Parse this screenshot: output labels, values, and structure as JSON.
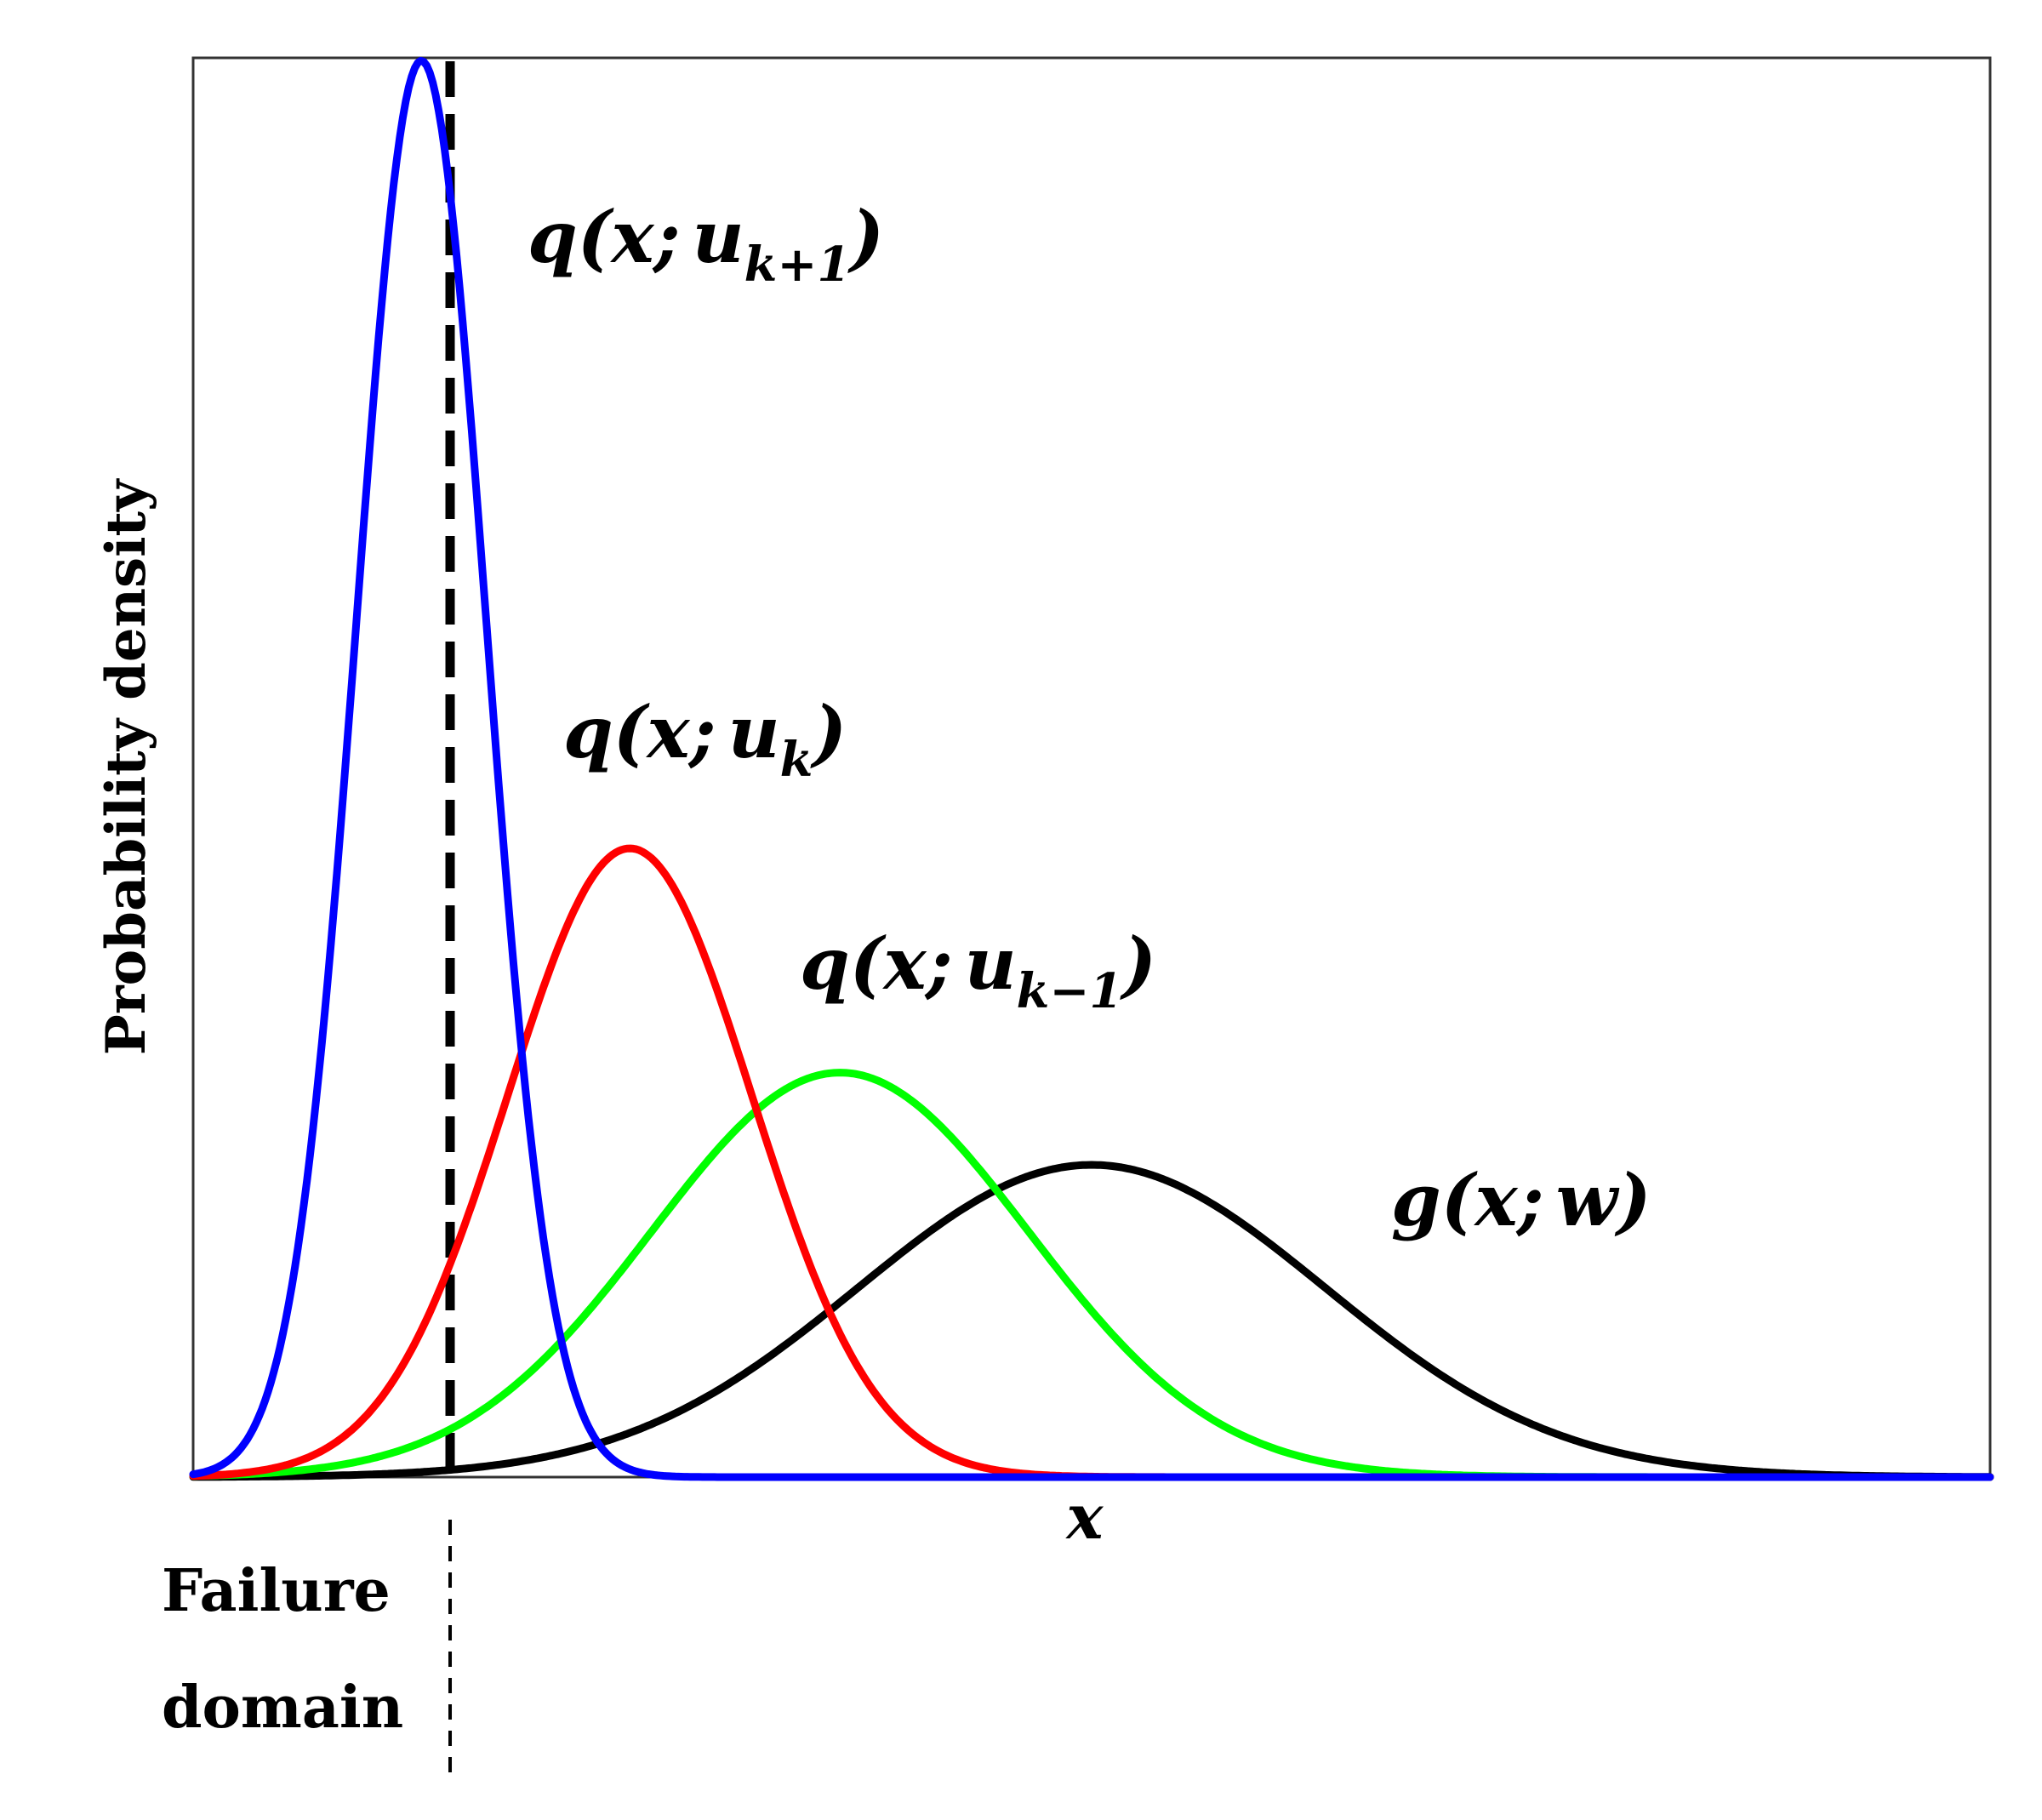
{
  "chart_data": {
    "type": "line",
    "title": "",
    "xlabel": "x",
    "ylabel": "Probability density",
    "xlim": [
      0,
      10
    ],
    "ylim": [
      0,
      1
    ],
    "grid": false,
    "ticks": false,
    "series": [
      {
        "label_main": "g(x;",
        "label_sub": "",
        "label_tail": "w)",
        "color": "#000000",
        "mean": 5.0,
        "sd": 1.3,
        "peak": 0.22
      },
      {
        "label_main": "q(x;",
        "label_sub": "k−1",
        "label_tail": "u",
        "color": "#00ff00",
        "mean": 3.6,
        "sd": 1.05,
        "peak": 0.285
      },
      {
        "label_main": "q(x;",
        "label_sub": "k",
        "label_tail": "u",
        "color": "#ff0000",
        "mean": 2.43,
        "sd": 0.68,
        "peak": 0.443
      },
      {
        "label_main": "q(x;",
        "label_sub": "k+1",
        "label_tail": "u",
        "color": "#0000ff",
        "mean": 1.27,
        "sd": 0.36,
        "peak": 0.998
      }
    ],
    "threshold": {
      "x": 1.43,
      "label_line1": "Failure",
      "label_line2": "domain",
      "color": "#000000"
    }
  }
}
